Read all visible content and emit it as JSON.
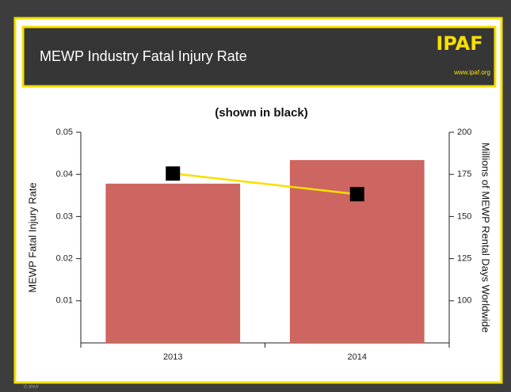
{
  "header": {
    "title": "MEWP Industry Fatal Injury Rate",
    "logo": "IPAF",
    "url": "www.ipaf.org"
  },
  "footer": "© IPAF",
  "chart_data": {
    "type": "bar",
    "title": "(shown in black)",
    "ylabel": "MEWP Fatal Injury Rate",
    "y2label": "Millions of MEWP Rental Days Worldwide",
    "categories": [
      "2013",
      "2014"
    ],
    "series": [
      {
        "type": "bar",
        "color": "#cd6660",
        "axis": "y2",
        "values": [
          169.5,
          183.5
        ]
      },
      {
        "type": "line",
        "color": "#f5e000",
        "marker_color": "#000000",
        "values": [
          0.0402,
          0.0353
        ]
      }
    ],
    "ylim": [
      0,
      0.05
    ],
    "yticks": [
      0.01,
      0.02,
      0.03,
      0.04,
      0.05
    ],
    "y2lim": [
      75,
      200
    ],
    "y2ticks": [
      100,
      125,
      150,
      175,
      200
    ]
  }
}
